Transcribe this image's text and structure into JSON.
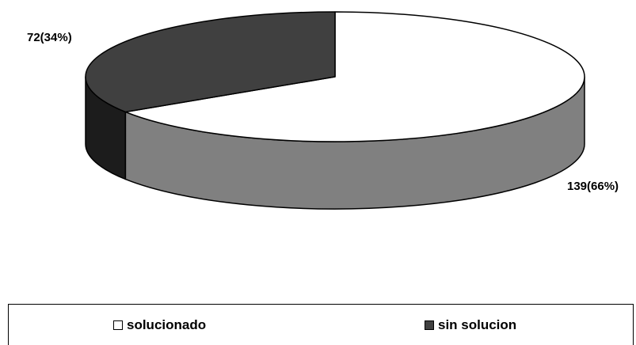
{
  "chart_data": {
    "type": "pie",
    "title": "",
    "style": "3d",
    "legend_position": "bottom",
    "categories": [
      "solucionado",
      "sin solucion"
    ],
    "values": [
      139,
      72
    ],
    "percents": [
      "66%",
      "34%"
    ],
    "data_labels": [
      "139(66%)",
      "72(34%)"
    ],
    "colors": {
      "solucionado": {
        "top": "#ffffff",
        "side": "#808080"
      },
      "sin solucion": {
        "top": "#404040",
        "side": "#1c1c1c"
      }
    }
  },
  "legend": {
    "items": [
      {
        "label": "solucionado",
        "color": "#ffffff"
      },
      {
        "label": "sin solucion",
        "color": "#404040"
      }
    ]
  }
}
